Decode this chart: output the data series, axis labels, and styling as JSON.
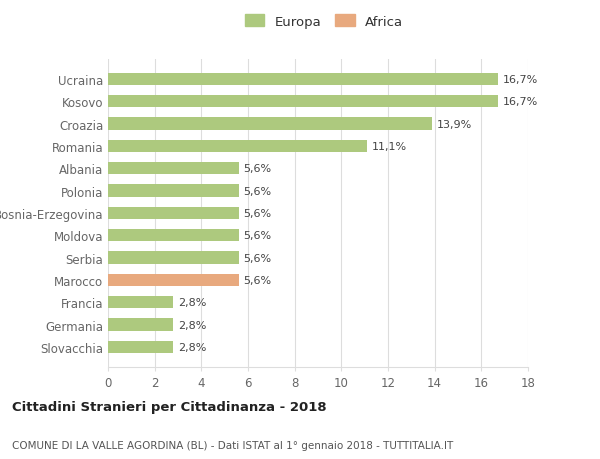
{
  "categories": [
    "Slovacchia",
    "Germania",
    "Francia",
    "Marocco",
    "Serbia",
    "Moldova",
    "Bosnia-Erzegovina",
    "Polonia",
    "Albania",
    "Romania",
    "Croazia",
    "Kosovo",
    "Ucraina"
  ],
  "values": [
    2.8,
    2.8,
    2.8,
    5.6,
    5.6,
    5.6,
    5.6,
    5.6,
    5.6,
    11.1,
    13.9,
    16.7,
    16.7
  ],
  "labels": [
    "2,8%",
    "2,8%",
    "2,8%",
    "5,6%",
    "5,6%",
    "5,6%",
    "5,6%",
    "5,6%",
    "5,6%",
    "11,1%",
    "13,9%",
    "16,7%",
    "16,7%"
  ],
  "colors": [
    "#adc97e",
    "#adc97e",
    "#adc97e",
    "#e8a97e",
    "#adc97e",
    "#adc97e",
    "#adc97e",
    "#adc97e",
    "#adc97e",
    "#adc97e",
    "#adc97e",
    "#adc97e",
    "#adc97e"
  ],
  "europa_color": "#adc97e",
  "africa_color": "#e8a97e",
  "xlim": [
    0,
    18
  ],
  "xticks": [
    0,
    2,
    4,
    6,
    8,
    10,
    12,
    14,
    16,
    18
  ],
  "title1": "Cittadini Stranieri per Cittadinanza - 2018",
  "title2": "COMUNE DI LA VALLE AGORDINA (BL) - Dati ISTAT al 1° gennaio 2018 - TUTTITALIA.IT",
  "legend_europa": "Europa",
  "legend_africa": "Africa",
  "background_color": "#ffffff",
  "grid_color": "#dddddd",
  "bar_height": 0.55
}
